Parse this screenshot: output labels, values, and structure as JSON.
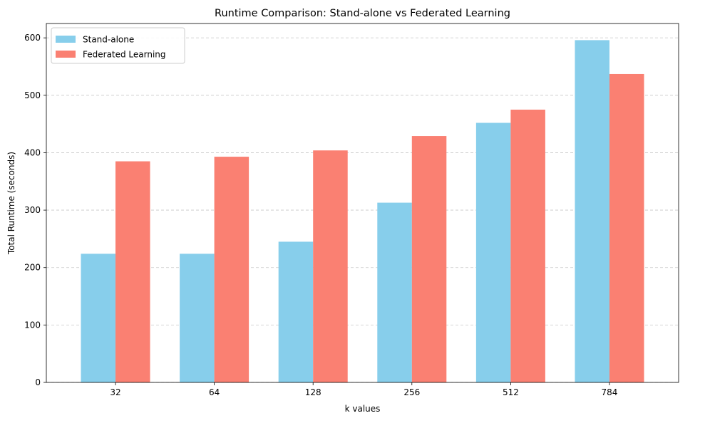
{
  "chart_data": {
    "type": "bar",
    "title": "Runtime Comparison: Stand-alone vs Federated Learning",
    "xlabel": "k values",
    "ylabel": "Total Runtime (seconds)",
    "categories": [
      "32",
      "64",
      "128",
      "256",
      "512",
      "784"
    ],
    "series": [
      {
        "name": "Stand-alone",
        "color": "#87ceeb",
        "values": [
          224,
          224,
          245,
          313,
          452,
          596
        ]
      },
      {
        "name": "Federated Learning",
        "color": "#fa8072",
        "values": [
          385,
          393,
          404,
          429,
          475,
          537
        ]
      }
    ],
    "ylim": [
      0,
      625
    ],
    "yticks": [
      0,
      100,
      200,
      300,
      400,
      500,
      600
    ],
    "grid": "y-dashed",
    "legend_position": "top-left"
  }
}
